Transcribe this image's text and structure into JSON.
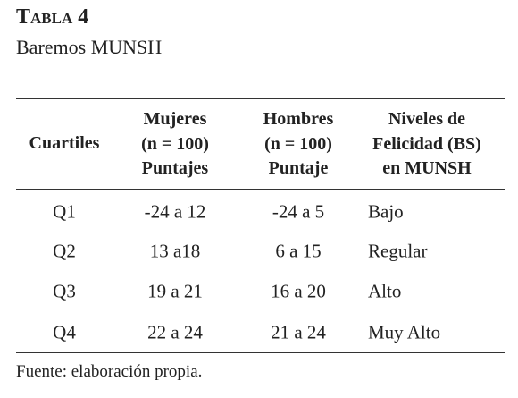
{
  "header": {
    "title": "Tabla 4",
    "subtitle": "Baremos MUNSH"
  },
  "table": {
    "columns": [
      [
        "Cuartiles"
      ],
      [
        "Mujeres",
        "(n = 100)",
        "Puntajes"
      ],
      [
        "Hombres",
        "(n = 100)",
        "Puntaje"
      ],
      [
        "Niveles de",
        "Felicidad (BS)",
        "en MUNSH"
      ]
    ],
    "rows": [
      [
        "Q1",
        "-24 a 12",
        "-24 a 5",
        "Bajo"
      ],
      [
        "Q2",
        "13 a18",
        "6 a 15",
        "Regular"
      ],
      [
        "Q3",
        "19 a 21",
        "16 a 20",
        "Alto"
      ],
      [
        "Q4",
        "22 a 24",
        "21 a 24",
        "Muy Alto"
      ]
    ]
  },
  "footer": "Fuente: elaboración propia."
}
